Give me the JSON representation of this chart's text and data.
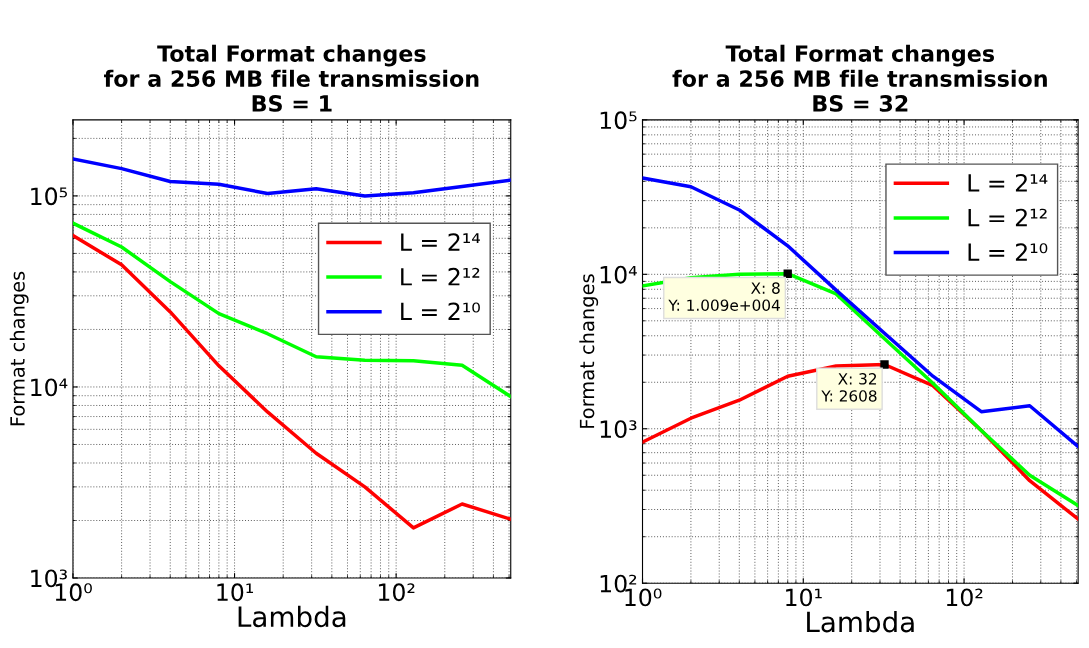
{
  "chart_data": [
    {
      "type": "line",
      "title": "Total Format changes\nfor a 256 MB file transmission\nBS = 1",
      "xlabel": "Lambda",
      "ylabel": "Format changes",
      "log": "xy",
      "grid": true,
      "legend": "right",
      "line_style": "solid",
      "x": [
        1,
        2,
        4,
        8,
        16,
        32,
        64,
        128,
        256,
        512
      ],
      "xlim": [
        1,
        512
      ],
      "ylim": [
        1000,
        250000
      ],
      "xticks": [
        {
          "value": 1,
          "label": "10⁰"
        },
        {
          "value": 10,
          "label": "10¹"
        },
        {
          "value": 100,
          "label": "10²"
        }
      ],
      "yticks": [
        {
          "value": 1000,
          "label": "10³"
        },
        {
          "value": 10000,
          "label": "10⁴"
        },
        {
          "value": 100000,
          "label": "10⁵"
        }
      ],
      "series": [
        {
          "name": "L = 2¹⁴",
          "color": "#ff0000",
          "values": [
            62000,
            43600,
            24700,
            12900,
            7400,
            4500,
            3000,
            1830,
            2440,
            2030
          ]
        },
        {
          "name": "L = 2¹²",
          "color": "#00ff00",
          "values": [
            72000,
            54000,
            35600,
            24200,
            19000,
            14400,
            13800,
            13700,
            13000,
            8900
          ]
        },
        {
          "name": "L = 2¹⁰",
          "color": "#0000ff",
          "values": [
            156000,
            139000,
            119000,
            115000,
            103000,
            109000,
            100000,
            104000,
            112000,
            121000
          ]
        }
      ]
    },
    {
      "type": "line",
      "title": "Total Format changes\nfor a 256 MB file transmission\nBS = 32",
      "xlabel": "Lambda",
      "ylabel": "Format changes",
      "log": "xy",
      "grid": true,
      "legend": "top right",
      "line_style": "solid",
      "x": [
        1,
        2,
        4,
        8,
        16,
        32,
        64,
        128,
        256,
        512
      ],
      "xlim": [
        1,
        512
      ],
      "ylim": [
        100,
        100000
      ],
      "xticks": [
        {
          "value": 1,
          "label": "10⁰"
        },
        {
          "value": 10,
          "label": "10¹"
        },
        {
          "value": 100,
          "label": "10²"
        }
      ],
      "yticks": [
        {
          "value": 100,
          "label": "10²"
        },
        {
          "value": 1000,
          "label": "10³"
        },
        {
          "value": 10000,
          "label": "10⁴"
        },
        {
          "value": 100000,
          "label": "10⁵"
        }
      ],
      "annotations": [
        {
          "text": "X: 8\nY: 1.009e+004",
          "x": 8,
          "y": 10090
        },
        {
          "text": "X: 32\nY: 2608",
          "x": 32,
          "y": 2608
        }
      ],
      "series": [
        {
          "name": "L = 2¹⁴",
          "color": "#ff0000",
          "values": [
            820,
            1170,
            1530,
            2190,
            2550,
            2608,
            1900,
            974,
            461,
            260
          ]
        },
        {
          "name": "L = 2¹²",
          "color": "#00ff00",
          "values": [
            8400,
            9500,
            10000,
            10090,
            7460,
            3830,
            1970,
            974,
            500,
            318
          ]
        },
        {
          "name": "L = 2¹⁰",
          "color": "#0000ff",
          "values": [
            42000,
            36900,
            26100,
            15300,
            7900,
            4150,
            2190,
            1290,
            1410,
            766
          ]
        }
      ]
    }
  ]
}
